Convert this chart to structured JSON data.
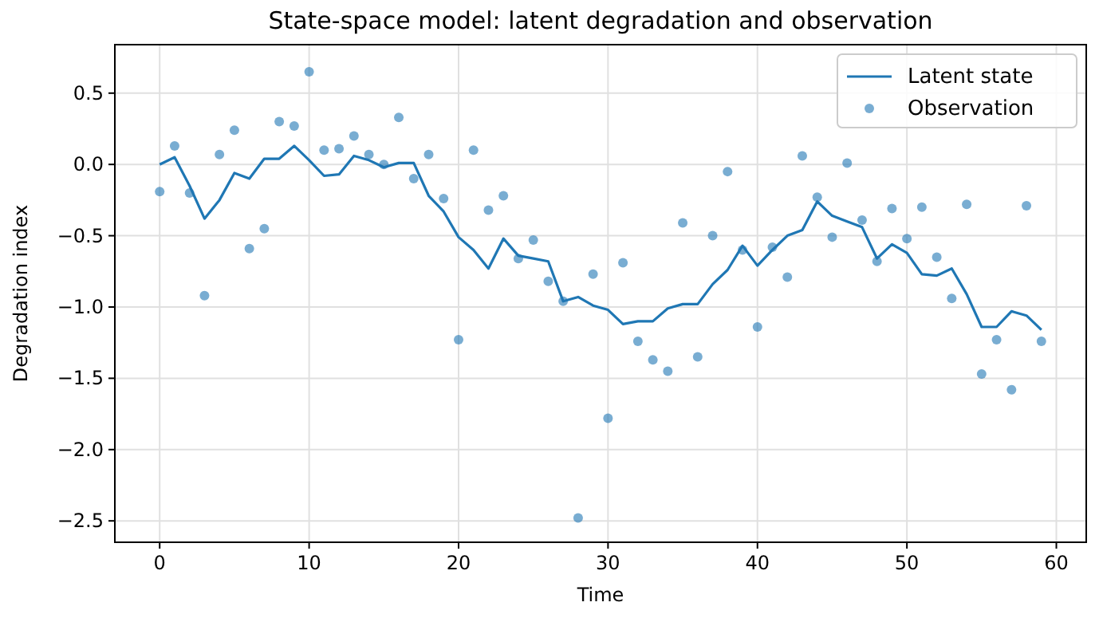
{
  "chart_data": {
    "type": "line",
    "title": "State-space model: latent degradation and observation",
    "xlabel": "Time",
    "ylabel": "Degradation index",
    "xlim": [
      -3,
      62
    ],
    "xticks": [
      0,
      10,
      20,
      30,
      40,
      50,
      60
    ],
    "ylim": [
      -2.65,
      0.84
    ],
    "yticks": [
      {
        "value": -2.5,
        "label": "−2.5"
      },
      {
        "value": -2,
        "label": "−2.0"
      },
      {
        "value": -1.5,
        "label": "−1.5"
      },
      {
        "value": -1,
        "label": "−1.0"
      },
      {
        "value": -0.5,
        "label": "−0.5"
      },
      {
        "value": 0,
        "label": "0.0"
      },
      {
        "value": 0.5,
        "label": "0.5"
      }
    ],
    "grid": true,
    "legend": "top right",
    "series": [
      {
        "name": "Latent state",
        "color": "#1f77b4",
        "x": [
          0,
          1,
          2,
          3,
          4,
          5,
          6,
          7,
          8,
          9,
          10,
          11,
          12,
          13,
          14,
          15,
          16,
          17,
          18,
          19,
          20,
          21,
          22,
          23,
          24,
          25,
          26,
          27,
          28,
          29,
          30,
          31,
          32,
          33,
          34,
          35,
          36,
          37,
          38,
          39,
          40,
          41,
          42,
          43,
          44,
          45,
          46,
          47,
          48,
          49,
          50,
          51,
          52,
          53,
          54,
          55,
          56,
          57,
          58,
          59
        ],
        "values": [
          0.0,
          0.05,
          -0.15,
          -0.38,
          -0.25,
          -0.06,
          -0.1,
          0.04,
          0.04,
          0.13,
          0.03,
          -0.08,
          -0.07,
          0.06,
          0.03,
          -0.02,
          0.01,
          0.01,
          -0.22,
          -0.33,
          -0.51,
          -0.6,
          -0.73,
          -0.52,
          -0.64,
          -0.66,
          -0.68,
          -0.96,
          -0.93,
          -0.99,
          -1.02,
          -1.12,
          -1.1,
          -1.1,
          -1.01,
          -0.98,
          -0.98,
          -0.84,
          -0.74,
          -0.57,
          -0.71,
          -0.6,
          -0.5,
          -0.46,
          -0.26,
          -0.36,
          -0.4,
          -0.44,
          -0.66,
          -0.56,
          -0.62,
          -0.77,
          -0.78,
          -0.73,
          -0.91,
          -1.14,
          -1.14,
          -1.03,
          -1.06,
          -1.16
        ]
      },
      {
        "name": "Observation",
        "type": "scatter",
        "color": "#1f77b4",
        "marker": "circle",
        "x": [
          0,
          1,
          2,
          3,
          4,
          5,
          6,
          7,
          8,
          9,
          10,
          11,
          12,
          13,
          14,
          15,
          16,
          17,
          18,
          19,
          20,
          21,
          22,
          23,
          24,
          25,
          26,
          27,
          28,
          29,
          30,
          31,
          32,
          33,
          34,
          35,
          36,
          37,
          38,
          39,
          40,
          41,
          42,
          43,
          44,
          45,
          46,
          47,
          48,
          49,
          50,
          51,
          52,
          53,
          54,
          55,
          56,
          57,
          58,
          59
        ],
        "values": [
          -0.19,
          0.13,
          -0.2,
          -0.92,
          0.07,
          0.24,
          -0.59,
          -0.45,
          0.3,
          0.27,
          0.65,
          0.1,
          0.11,
          0.2,
          0.07,
          0.0,
          0.33,
          -0.1,
          0.07,
          -0.24,
          -1.23,
          0.1,
          -0.32,
          -0.22,
          -0.66,
          -0.53,
          -0.82,
          -0.96,
          -2.48,
          -0.77,
          -1.78,
          -0.69,
          -1.24,
          -1.37,
          -1.45,
          -0.41,
          -1.35,
          -0.5,
          -0.05,
          -0.6,
          -1.14,
          -0.58,
          -0.79,
          0.06,
          -0.23,
          -0.51,
          0.01,
          -0.39,
          -0.68,
          -0.31,
          -0.52,
          -0.3,
          -0.65,
          -0.94,
          -0.28,
          -1.47,
          -1.23,
          -1.58,
          -0.29,
          -1.24
        ]
      }
    ]
  }
}
